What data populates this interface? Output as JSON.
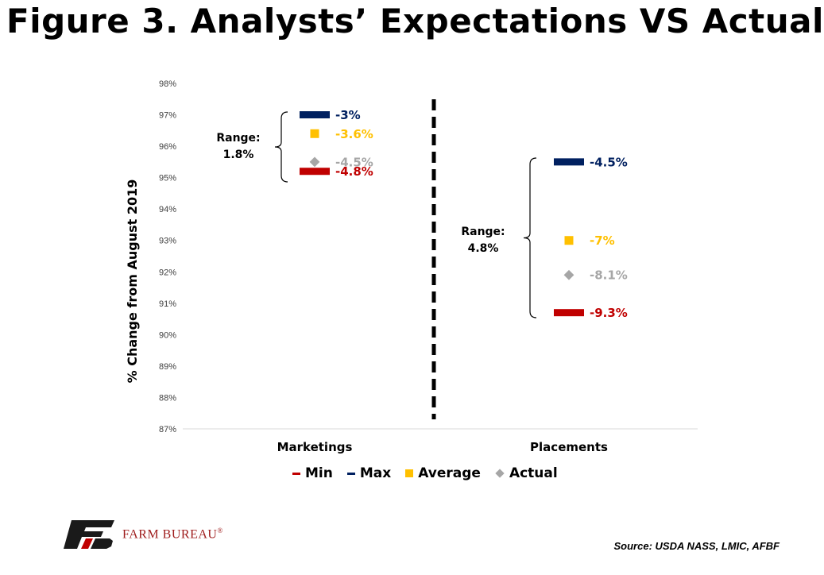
{
  "title": "Figure 3. Analysts’ Expectations VS Actual",
  "source": "Source:  USDA NASS, LMIC, AFBF",
  "logo_text": "FARM BUREAU",
  "logo_mark": "®",
  "chart_data": {
    "type": "scatter",
    "ylabel": "% Change from August 2019",
    "ylim": [
      87,
      98
    ],
    "yticks": [
      "87%",
      "88%",
      "89%",
      "90%",
      "91%",
      "92%",
      "93%",
      "94%",
      "95%",
      "96%",
      "97%",
      "98%"
    ],
    "categories": [
      "Marketings",
      "Placements"
    ],
    "series": [
      {
        "name": "Min",
        "marker": "dash",
        "color": "#c00000",
        "values": [
          95.2,
          90.7
        ],
        "labels": [
          "-4.8%",
          "-9.3%"
        ]
      },
      {
        "name": "Max",
        "marker": "dash",
        "color": "#002060",
        "values": [
          97.0,
          95.5
        ],
        "labels": [
          "-3%",
          "-4.5%"
        ]
      },
      {
        "name": "Average",
        "marker": "square",
        "color": "#ffc000",
        "values": [
          96.4,
          93.0
        ],
        "labels": [
          "-3.6%",
          "-7%"
        ]
      },
      {
        "name": "Actual",
        "marker": "diamond",
        "color": "#a6a6a6",
        "values": [
          95.5,
          91.9
        ],
        "labels": [
          "-4.5%",
          "-8.1%"
        ]
      }
    ],
    "annotations": [
      {
        "category": "Marketings",
        "line1": "Range:",
        "line2": "1.8%"
      },
      {
        "category": "Placements",
        "line1": "Range:",
        "line2": "4.8%"
      }
    ],
    "grid": false,
    "legend": "bottom",
    "divider": "dashed vertical line between categories"
  }
}
